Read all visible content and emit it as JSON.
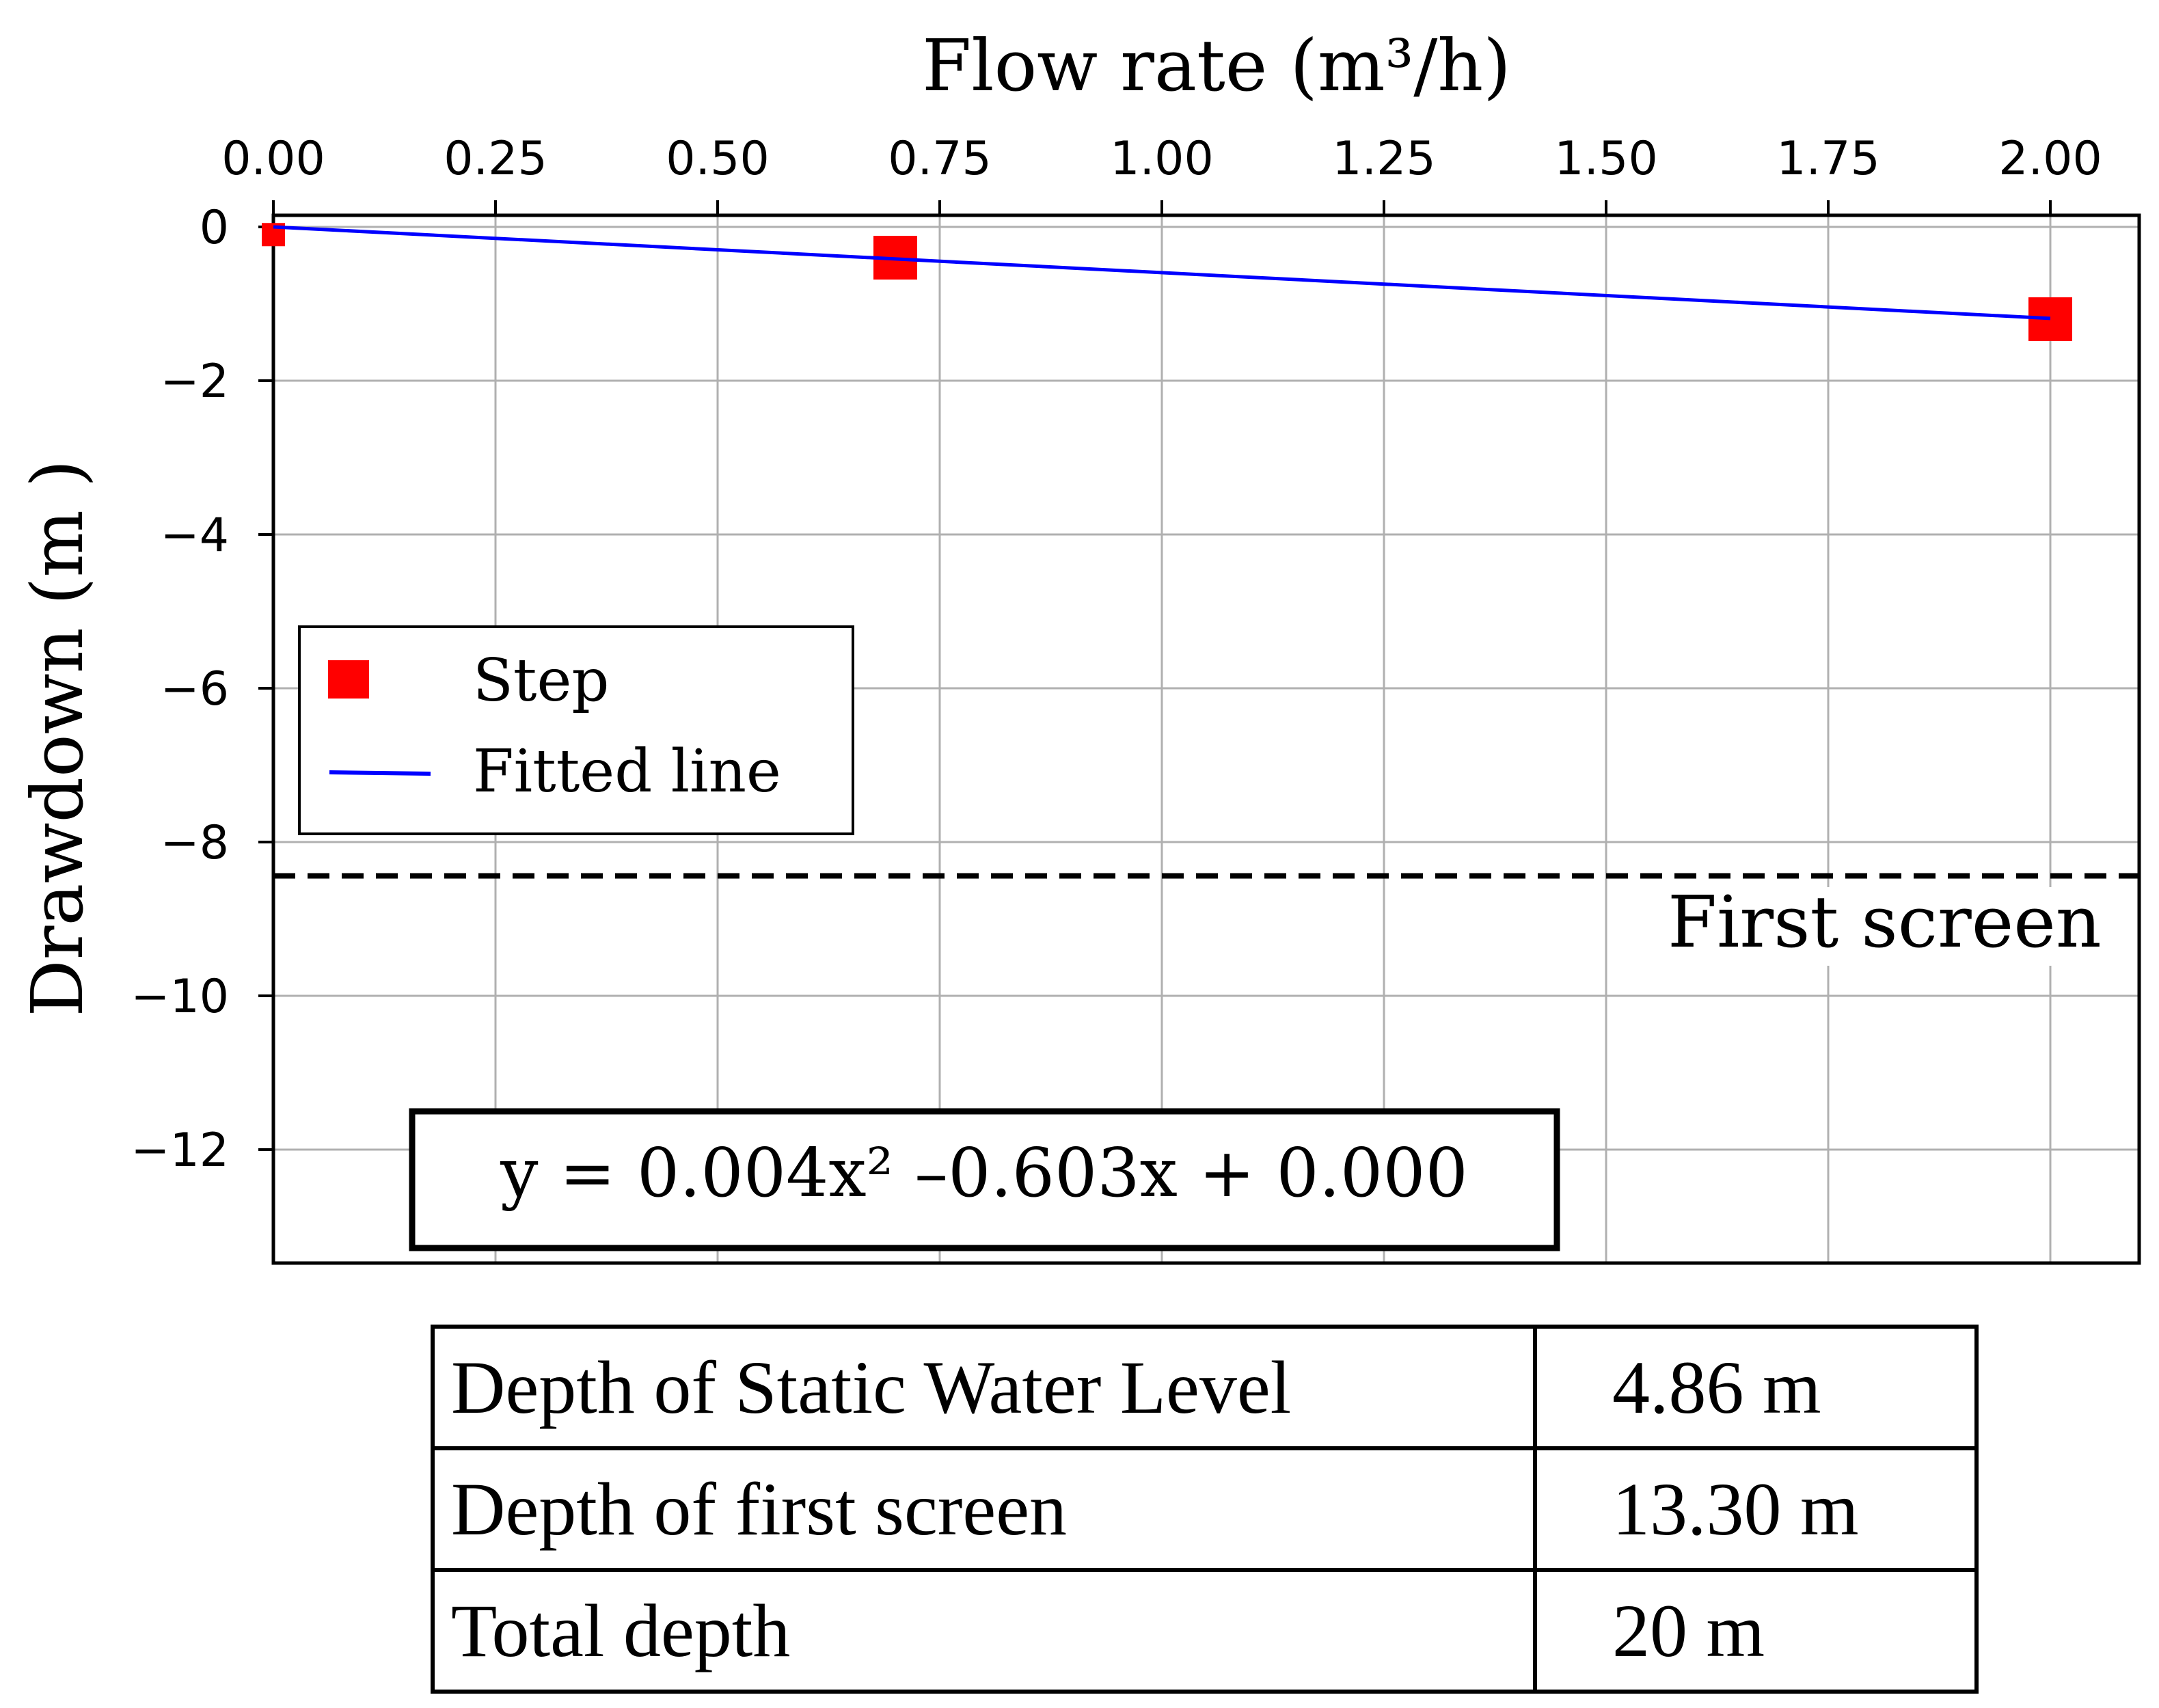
{
  "chart_data": {
    "type": "scatter",
    "xlabel": "Flow rate (m³/h)",
    "ylabel": "Drawdown (m )",
    "xlim": [
      0,
      2.1
    ],
    "ylim": [
      -13.5,
      0.2
    ],
    "xticks": [
      "0.00",
      "0.25",
      "0.50",
      "0.75",
      "1.00",
      "1.25",
      "1.50",
      "1.75",
      "2.00"
    ],
    "yticks": [
      "0",
      "−2",
      "−4",
      "−6",
      "−8",
      "−10",
      "−12"
    ],
    "grid": true,
    "legend_position": "middle-left",
    "series": [
      {
        "name": "Step",
        "kind": "marker",
        "color": "#ff0000",
        "x": [
          0.0,
          0.7,
          2.0
        ],
        "y": [
          -0.1,
          -0.4,
          -1.2
        ]
      },
      {
        "name": "Fitted line",
        "kind": "line",
        "color": "#0000ff",
        "x": [
          0.0,
          2.0
        ],
        "y": [
          0.0,
          -1.19
        ]
      }
    ],
    "reference_line": {
      "label": "First screen",
      "y": -8.44,
      "style": "dashed",
      "color": "#000000"
    },
    "equation": "y = 0.004x² –0.603x + 0.000"
  },
  "table": {
    "rows": [
      {
        "label": "Depth of Static Water Level",
        "value": "4.86 m"
      },
      {
        "label": "Depth of first screen",
        "value": "13.30 m"
      },
      {
        "label": "Total depth",
        "value": "20 m"
      }
    ]
  }
}
